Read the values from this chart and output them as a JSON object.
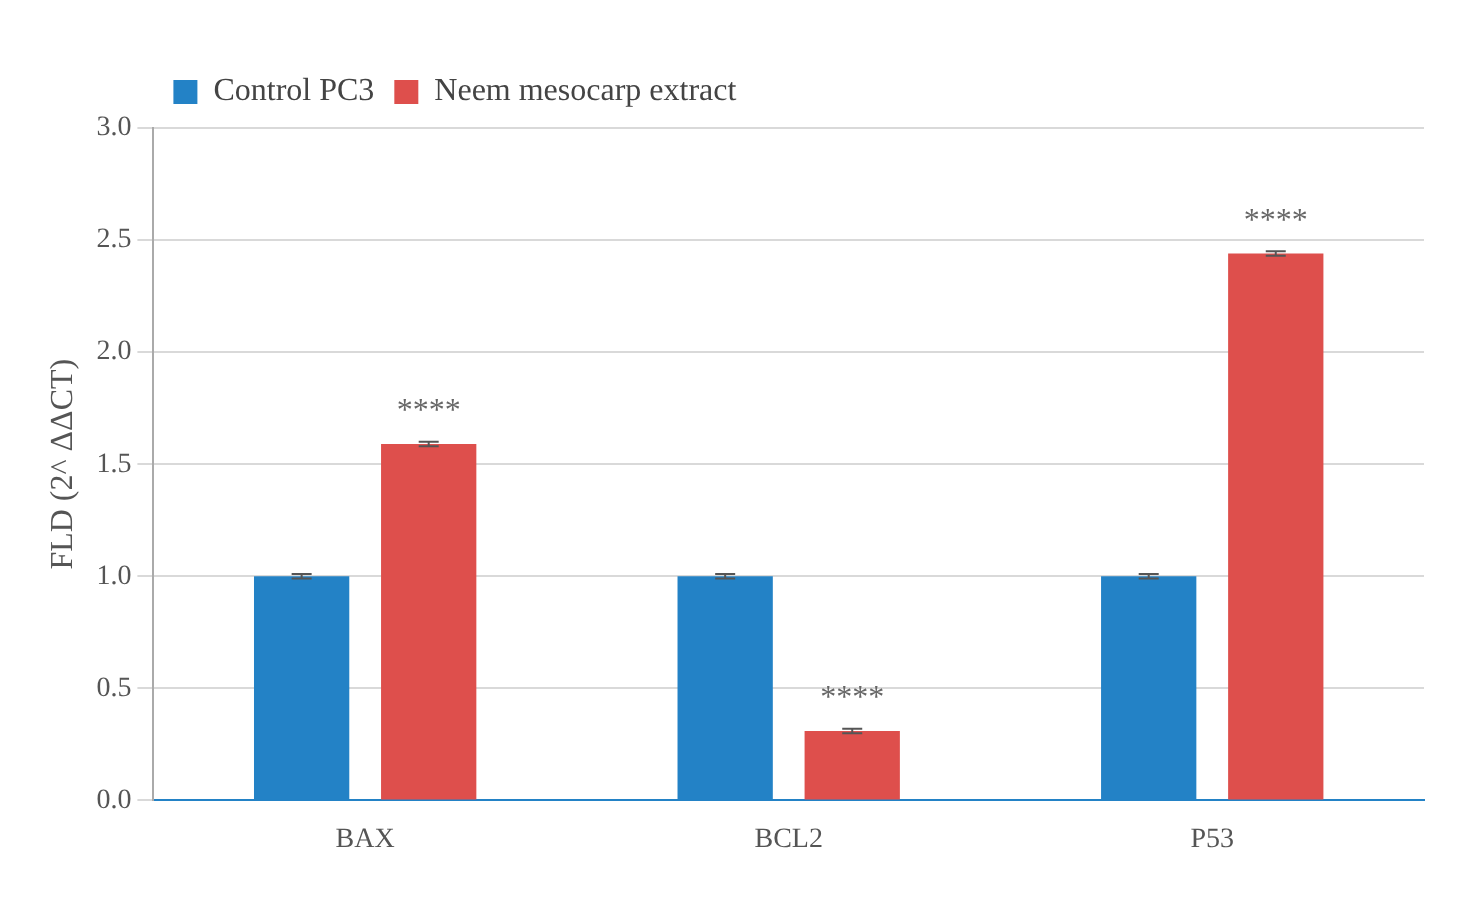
{
  "chart_data": {
    "type": "bar",
    "ylabel": "FLD (2^ ΔΔCT)",
    "categories": [
      "BAX",
      "BCL2",
      "P53"
    ],
    "series": [
      {
        "name": "Control PC3",
        "color": "#2382c6",
        "values": [
          1.0,
          1.0,
          1.0
        ],
        "errors": [
          0.01,
          0.01,
          0.01
        ]
      },
      {
        "name": "Neem mesocarp extract",
        "color": "#de4f4c",
        "values": [
          1.59,
          0.31,
          2.44
        ],
        "errors": [
          0.01,
          0.01,
          0.01
        ]
      }
    ],
    "annotations": [
      "****",
      "****",
      "****"
    ],
    "ylim": [
      0,
      3
    ],
    "yticks": [
      {
        "value": 0,
        "label": "0.0"
      },
      {
        "value": 0.5,
        "label": "0.5"
      },
      {
        "value": 1,
        "label": "1.0"
      },
      {
        "value": 1.5,
        "label": "1.5"
      },
      {
        "value": 2,
        "label": "2.0"
      },
      {
        "value": 2.5,
        "label": "2.5"
      },
      {
        "value": 3,
        "label": "3.0"
      }
    ],
    "grid": "y",
    "legend": "top left"
  }
}
